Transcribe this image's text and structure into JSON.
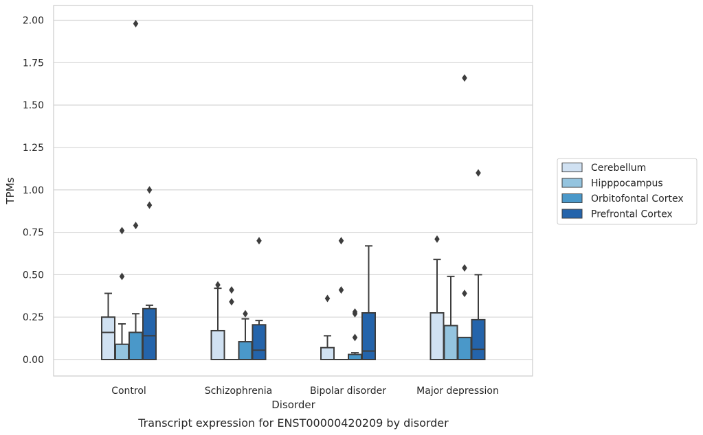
{
  "chart_data": {
    "type": "box",
    "title": "",
    "caption": "Transcript expression for ENST00000420209 by disorder",
    "xlabel": "Disorder",
    "ylabel": "TPMs",
    "ylim": [
      -0.1,
      2.08
    ],
    "yticks": [
      0.0,
      0.25,
      0.5,
      0.75,
      1.0,
      1.25,
      1.5,
      1.75,
      2.0
    ],
    "ytick_labels": [
      "0.00",
      "0.25",
      "0.50",
      "0.75",
      "1.00",
      "1.25",
      "1.50",
      "1.75",
      "2.00"
    ],
    "categories": [
      "Control",
      "Schizophrenia",
      "Bipolar disorder",
      "Major depression"
    ],
    "grid": "horizontal",
    "legend_position": "right",
    "series": [
      {
        "name": "Cerebellum",
        "color": "#d0e1f2",
        "boxes": [
          {
            "whislo": 0.0,
            "q1": 0.0,
            "med": 0.16,
            "q3": 0.25,
            "whishi": 0.39,
            "fliers": []
          },
          {
            "whislo": 0.0,
            "q1": 0.0,
            "med": 0.0,
            "q3": 0.17,
            "whishi": 0.42,
            "fliers": [
              0.44
            ]
          },
          {
            "whislo": 0.0,
            "q1": 0.0,
            "med": 0.0,
            "q3": 0.07,
            "whishi": 0.14,
            "fliers": [
              0.36
            ]
          },
          {
            "whislo": 0.0,
            "q1": 0.0,
            "med": 0.0,
            "q3": 0.275,
            "whishi": 0.59,
            "fliers": [
              0.71
            ]
          }
        ]
      },
      {
        "name": "Hipppocampus",
        "color": "#94c4df",
        "boxes": [
          {
            "whislo": 0.0,
            "q1": 0.0,
            "med": 0.0,
            "q3": 0.09,
            "whishi": 0.21,
            "fliers": [
              0.49,
              0.76
            ]
          },
          {
            "whislo": 0.0,
            "q1": 0.0,
            "med": 0.0,
            "q3": 0.0,
            "whishi": 0.0,
            "fliers": [
              0.41,
              0.34
            ]
          },
          {
            "whislo": 0.0,
            "q1": 0.0,
            "med": 0.0,
            "q3": 0.0,
            "whishi": 0.0,
            "fliers": [
              0.41,
              0.7
            ]
          },
          {
            "whislo": 0.0,
            "q1": 0.0,
            "med": 0.0,
            "q3": 0.2,
            "whishi": 0.49,
            "fliers": []
          }
        ]
      },
      {
        "name": "Orbitofontal Cortex",
        "color": "#4a98c9",
        "boxes": [
          {
            "whislo": 0.0,
            "q1": 0.0,
            "med": 0.0,
            "q3": 0.16,
            "whishi": 0.27,
            "fliers": [
              0.79,
              1.98
            ]
          },
          {
            "whislo": 0.0,
            "q1": 0.0,
            "med": 0.0,
            "q3": 0.105,
            "whishi": 0.24,
            "fliers": [
              0.27
            ]
          },
          {
            "whislo": 0.0,
            "q1": 0.0,
            "med": 0.0,
            "q3": 0.03,
            "whishi": 0.04,
            "fliers": [
              0.13,
              0.27,
              0.28
            ]
          },
          {
            "whislo": 0.0,
            "q1": 0.0,
            "med": 0.0,
            "q3": 0.13,
            "whishi": 0.13,
            "fliers": [
              0.39,
              0.54,
              1.66
            ]
          }
        ]
      },
      {
        "name": "Prefrontal Cortex",
        "color": "#2464ab",
        "boxes": [
          {
            "whislo": 0.0,
            "q1": 0.0,
            "med": 0.14,
            "q3": 0.3,
            "whishi": 0.32,
            "fliers": [
              0.91,
              1.0
            ]
          },
          {
            "whislo": 0.0,
            "q1": 0.0,
            "med": 0.055,
            "q3": 0.205,
            "whishi": 0.23,
            "fliers": [
              0.7
            ]
          },
          {
            "whislo": 0.0,
            "q1": 0.0,
            "med": 0.05,
            "q3": 0.275,
            "whishi": 0.67,
            "fliers": []
          },
          {
            "whislo": 0.0,
            "q1": 0.0,
            "med": 0.06,
            "q3": 0.235,
            "whishi": 0.5,
            "fliers": [
              1.1
            ]
          }
        ]
      }
    ]
  }
}
